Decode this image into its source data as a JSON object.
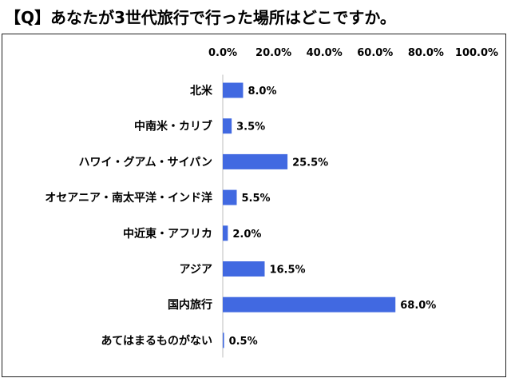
{
  "title": "【Q】あなたが3世代旅行で行った場所はどこですか。",
  "chart_data": {
    "type": "bar",
    "orientation": "horizontal",
    "title": "【Q】あなたが3世代旅行で行った場所はどこですか。",
    "categories": [
      "北米",
      "中南米・カリブ",
      "ハワイ・グアム・サイパン",
      "オセアニア・南太平洋・インド洋",
      "中近東・アフリカ",
      "アジア",
      "国内旅行",
      "あてはまるものがない"
    ],
    "values": [
      8.0,
      3.5,
      25.5,
      5.5,
      2.0,
      16.5,
      68.0,
      0.5
    ],
    "value_labels": [
      "8.0%",
      "3.5%",
      "25.5%",
      "5.5%",
      "2.0%",
      "16.5%",
      "68.0%",
      "0.5%"
    ],
    "xlim": [
      0,
      100
    ],
    "x_ticks": [
      0,
      20,
      40,
      60,
      80,
      100
    ],
    "x_tick_labels": [
      "0.0%",
      "20.0%",
      "40.0%",
      "60.0%",
      "80.0%",
      "100.0%"
    ],
    "x_axis_position": "top",
    "grid": false,
    "bar_color": "#4169E1"
  }
}
